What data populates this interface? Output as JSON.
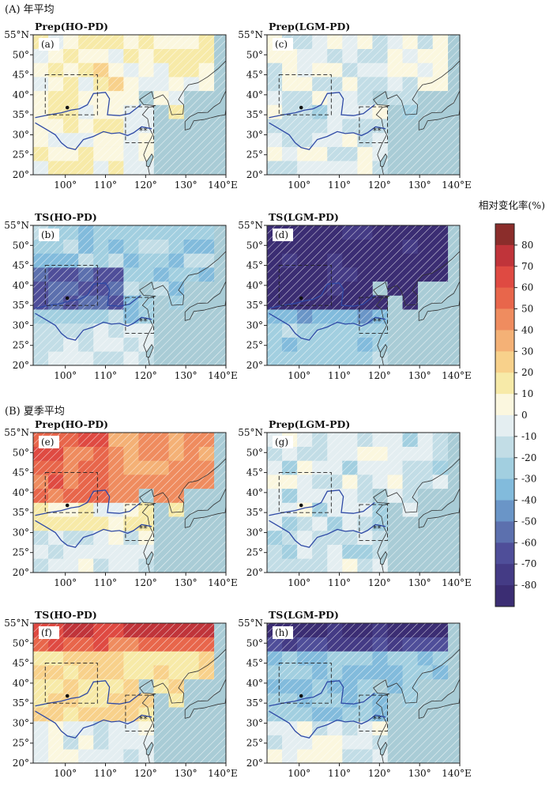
{
  "sections": [
    {
      "label": "(A) 年平均"
    },
    {
      "label": "(B) 夏季平均"
    }
  ],
  "axis": {
    "lat_ticks": [
      "20°",
      "25°",
      "30°",
      "35°",
      "40°",
      "45°",
      "50°",
      "55°N"
    ],
    "lon_ticks": [
      "100°",
      "110°",
      "120°",
      "130°",
      "140°E"
    ],
    "lon_range": [
      92,
      140
    ],
    "lat_range": [
      20,
      55
    ]
  },
  "colorbar": {
    "title": "相对变化率(%)",
    "ticks": [
      "80",
      "70",
      "60",
      "50",
      "40",
      "30",
      "20",
      "10",
      "0",
      "-10",
      "-20",
      "-30",
      "-40",
      "-50",
      "-60",
      "-70",
      "-80"
    ],
    "colors": [
      "#8b2d2b",
      "#c0343a",
      "#df4a42",
      "#e8664b",
      "#ef8c5f",
      "#f4b176",
      "#f8d18b",
      "#f7eaa8",
      "#fbf7df",
      "#e4eef1",
      "#c2dde6",
      "#a2cfe0",
      "#82bbdc",
      "#6a95c7",
      "#5c70ae",
      "#4f4e99",
      "#443b85",
      "#3b2d73"
    ]
  },
  "chart_data": [
    {
      "type": "heatmap",
      "title": "Prep(HO-PD)",
      "tag": "(a)",
      "pattern": "mixed",
      "base": 0.5,
      "ocean": "#a9ccd6"
    },
    {
      "type": "heatmap",
      "title": "Prep(LGM-PD)",
      "tag": "(c)",
      "pattern": "mixed",
      "base": -0.8,
      "ocean": "#a9ccd6"
    },
    {
      "type": "heatmap",
      "title": "TS(HO-PD)",
      "tag": "(b)",
      "pattern": "cold",
      "base": -2.5,
      "ocean": "#a9ccd6"
    },
    {
      "type": "heatmap",
      "title": "TS(LGM-PD)",
      "tag": "(d)",
      "pattern": "verycold",
      "base": -8.5,
      "ocean": "#a9ccd6"
    },
    {
      "type": "heatmap",
      "title": "Prep(HO-PD)",
      "tag": "(e)",
      "pattern": "warmnorth",
      "base": 2.5,
      "ocean": "#a9ccd6"
    },
    {
      "type": "heatmap",
      "title": "Prep(LGM-PD)",
      "tag": "(g)",
      "pattern": "mixed",
      "base": -1.2,
      "ocean": "#a9ccd6"
    },
    {
      "type": "heatmap",
      "title": "TS(HO-PD)",
      "tag": "(f)",
      "pattern": "hotnorth",
      "base": 2.0,
      "ocean": "#a9ccd6"
    },
    {
      "type": "heatmap",
      "title": "TS(LGM-PD)",
      "tag": "(h)",
      "pattern": "coldnorth",
      "base": -3.0,
      "ocean": "#a9ccd6"
    }
  ]
}
